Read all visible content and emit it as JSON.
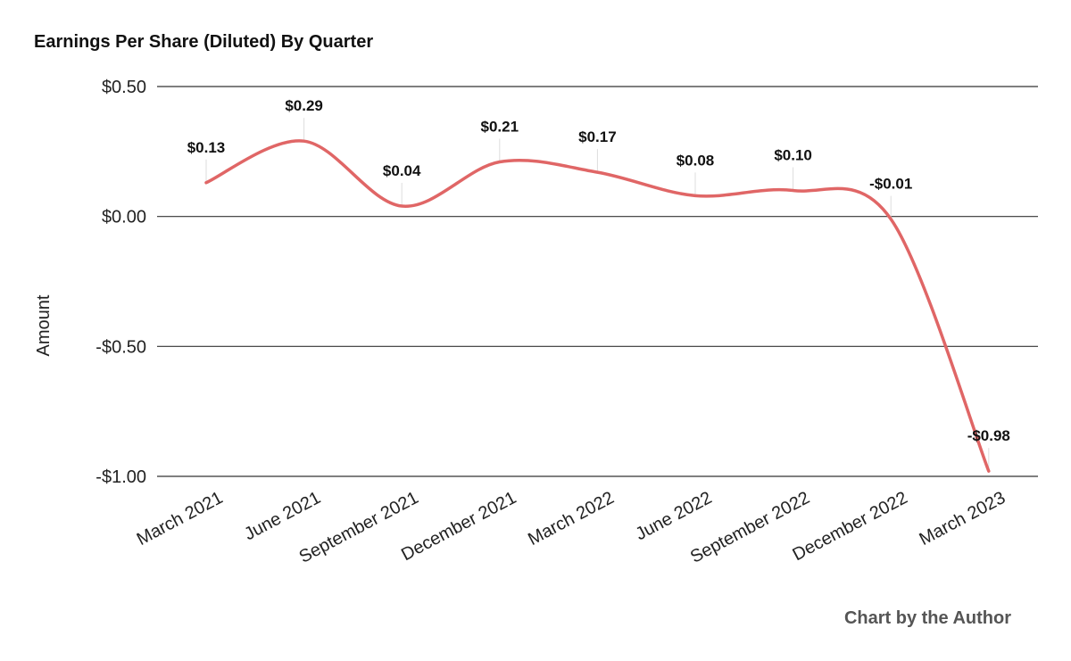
{
  "chart_data": {
    "type": "line",
    "title": "Earnings Per Share (Diluted) By Quarter",
    "xlabel": "",
    "ylabel": "Amount",
    "ylim": [
      -1.0,
      0.5
    ],
    "yticks": [
      0.5,
      0.0,
      -0.5,
      -1.0
    ],
    "ytick_labels": [
      "$0.50",
      "$0.00",
      "-$0.50",
      "-$1.00"
    ],
    "grid": true,
    "categories": [
      "March 2021",
      "June 2021",
      "September 2021",
      "December 2021",
      "March 2022",
      "June 2022",
      "September 2022",
      "December 2022",
      "March 2023"
    ],
    "series": [
      {
        "name": "EPS (Diluted)",
        "color": "#e06666",
        "values": [
          0.13,
          0.29,
          0.04,
          0.21,
          0.17,
          0.08,
          0.1,
          -0.01,
          -0.98
        ],
        "labels": [
          "$0.13",
          "$0.29",
          "$0.04",
          "$0.21",
          "$0.17",
          "$0.08",
          "$0.10",
          "-$0.01",
          "-$0.98"
        ]
      }
    ],
    "credit": "Chart by the Author"
  }
}
